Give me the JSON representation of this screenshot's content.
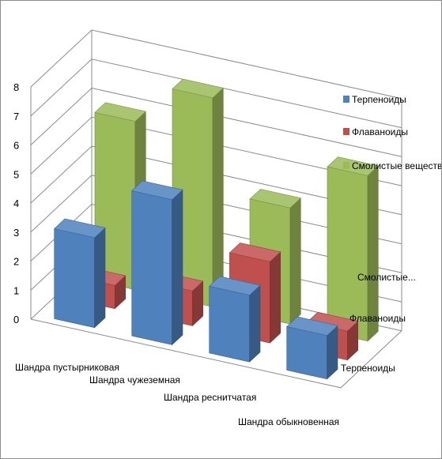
{
  "chart_data": {
    "type": "bar",
    "variant": "3d-column",
    "categories": [
      "Шандра пустырниковая",
      "Шандра чужеземная",
      "Шандра реснитчатая",
      "Шандра обыкновенная"
    ],
    "depth_labels": [
      "Терпеноиды",
      "Флаваноиды",
      "Смолистые..."
    ],
    "series": [
      {
        "name": "Терпеноиды",
        "color": "#4f81bd",
        "values": [
          3.1,
          5.0,
          2.3,
          1.5
        ]
      },
      {
        "name": "Флаваноиды",
        "color": "#c0504d",
        "values": [
          0.8,
          1.2,
          2.8,
          1.0
        ]
      },
      {
        "name": "Смолистые вещества",
        "color": "#9bbb59",
        "values": [
          5.8,
          7.2,
          4.0,
          5.7
        ]
      }
    ],
    "y_ticks": [
      "0",
      "1",
      "2",
      "3",
      "4",
      "5",
      "6",
      "7",
      "8"
    ],
    "ylim": [
      0,
      8
    ],
    "grid": true,
    "legend_position": "right"
  }
}
